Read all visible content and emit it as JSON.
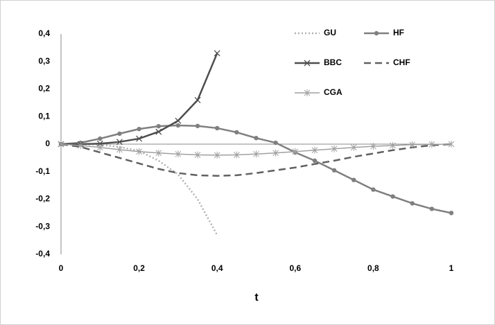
{
  "chart_data": {
    "type": "line",
    "xlabel": "t",
    "x": [
      0,
      0.05,
      0.1,
      0.15,
      0.2,
      0.25,
      0.3,
      0.35,
      0.4,
      0.45,
      0.5,
      0.55,
      0.6,
      0.65,
      0.7,
      0.75,
      0.8,
      0.85,
      0.9,
      0.95,
      1
    ],
    "series": [
      {
        "name": "GU",
        "color": "#b0b0b0",
        "dash": "dotted",
        "marker": "none",
        "values": [
          0,
          0,
          -0.002,
          -0.01,
          -0.025,
          -0.06,
          -0.11,
          -0.2,
          -0.33,
          null,
          null,
          null,
          null,
          null,
          null,
          null,
          null,
          null,
          null,
          null,
          null
        ]
      },
      {
        "name": "HF",
        "color": "#7f7f7f",
        "dash": "solid",
        "marker": "circle",
        "values": [
          0,
          0.005,
          0.02,
          0.038,
          0.055,
          0.065,
          0.068,
          0.066,
          0.058,
          0.043,
          0.022,
          0.005,
          -0.03,
          -0.06,
          -0.095,
          -0.13,
          -0.165,
          -0.19,
          -0.215,
          -0.235,
          -0.25
        ]
      },
      {
        "name": "BBC",
        "color": "#4d4d4d",
        "dash": "solid",
        "marker": "cross",
        "values": [
          0,
          0,
          0.002,
          0.008,
          0.02,
          0.045,
          0.085,
          0.16,
          0.33,
          null,
          null,
          null,
          null,
          null,
          null,
          null,
          null,
          null,
          null,
          null,
          null
        ]
      },
      {
        "name": "CHF",
        "color": "#606060",
        "dash": "dashed",
        "marker": "none",
        "values": [
          0,
          -0.01,
          -0.03,
          -0.05,
          -0.07,
          -0.09,
          -0.105,
          -0.113,
          -0.115,
          -0.113,
          -0.105,
          -0.095,
          -0.085,
          -0.072,
          -0.06,
          -0.046,
          -0.034,
          -0.022,
          -0.012,
          -0.004,
          0
        ]
      },
      {
        "name": "CGA",
        "color": "#a0a0a0",
        "dash": "solid",
        "marker": "star",
        "values": [
          0,
          -0.005,
          -0.012,
          -0.02,
          -0.027,
          -0.032,
          -0.036,
          -0.039,
          -0.04,
          -0.039,
          -0.036,
          -0.032,
          -0.027,
          -0.022,
          -0.017,
          -0.012,
          -0.008,
          -0.005,
          -0.002,
          -0.001,
          0
        ]
      }
    ],
    "xlim": [
      0,
      1
    ],
    "xticks": [
      0,
      {
        "value": 0.2,
        "label": "0,2"
      },
      {
        "value": 0.4,
        "label": "0,4"
      },
      {
        "value": 0.6,
        "label": "0,6"
      },
      {
        "value": 0.8,
        "label": "0,8"
      },
      1
    ],
    "ylim": [
      -0.4,
      0.4
    ],
    "yticks": [
      {
        "value": -0.4,
        "label": "-0,4"
      },
      {
        "value": -0.3,
        "label": "-0,3"
      },
      {
        "value": -0.2,
        "label": "-0,2"
      },
      {
        "value": -0.1,
        "label": "-0,1"
      },
      0,
      {
        "value": 0.1,
        "label": "0,1"
      },
      {
        "value": 0.2,
        "label": "0,2"
      },
      {
        "value": 0.3,
        "label": "0,3"
      },
      {
        "value": 0.4,
        "label": "0,4"
      }
    ],
    "legend": "upper right"
  }
}
